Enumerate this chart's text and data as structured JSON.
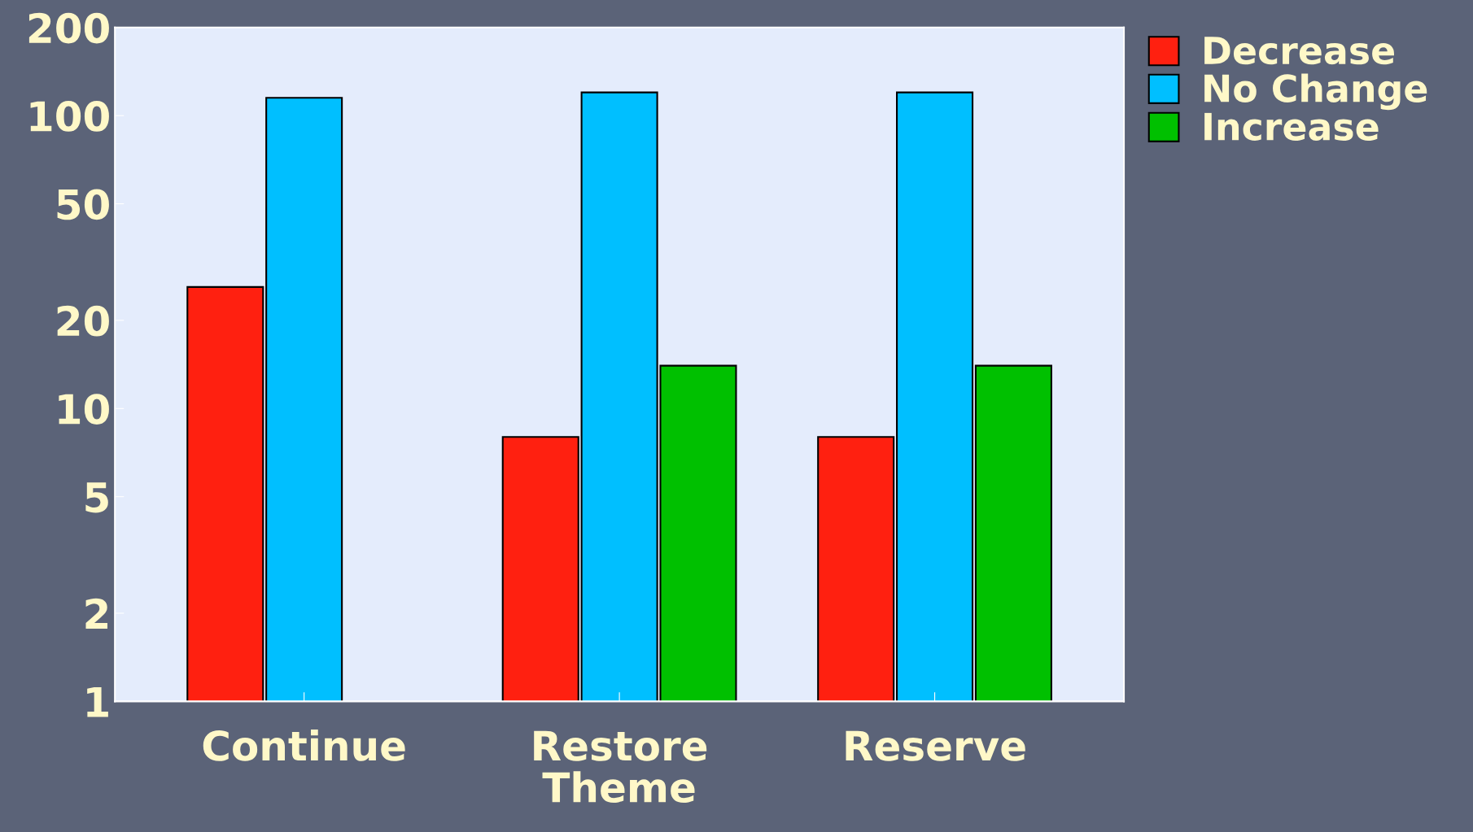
{
  "chart_data": {
    "type": "bar",
    "xlabel": "Theme",
    "categories": [
      "Continue",
      "Restore",
      "Reserve"
    ],
    "series": [
      {
        "name": "Decrease",
        "color": "#ff2010",
        "values": [
          26,
          8,
          8
        ]
      },
      {
        "name": "No Change",
        "color": "#00bfff",
        "values": [
          115,
          120,
          120
        ]
      },
      {
        "name": "Increase",
        "color": "#00c000",
        "values": [
          null,
          14,
          14
        ]
      }
    ],
    "log": "y",
    "ylim": [
      1,
      200
    ],
    "yticks": [
      1,
      2,
      5,
      10,
      20,
      50,
      100,
      200
    ],
    "grid": false,
    "legend": "top right"
  }
}
